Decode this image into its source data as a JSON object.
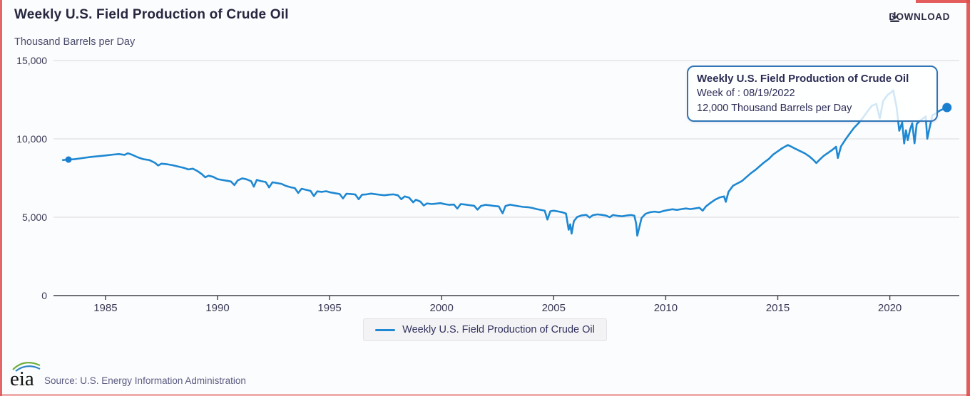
{
  "page": {
    "title": "Weekly U.S. Field Production of Crude Oil",
    "subtitle": "Thousand Barrels per Day",
    "download_label": "DOWNLOAD"
  },
  "tooltip": {
    "title": "Weekly U.S. Field Production of Crude Oil",
    "week_line": "Week of : 08/19/2022",
    "value_line": "12,000 Thousand Barrels per Day"
  },
  "legend": {
    "label": "Weekly U.S. Field Production of Crude Oil"
  },
  "footer": {
    "logo_text": "eia",
    "source": "Source: U.S. Energy Information Administration"
  },
  "colors": {
    "line": "#1e88d2",
    "dot": "#1b7fd0",
    "grid": "#d9d9de",
    "axis": "#3f3f4a",
    "tooltip_border": "#2f74b5",
    "red_border": "#e14b4b"
  },
  "chart_data": {
    "type": "line",
    "title": "Weekly U.S. Field Production of Crude Oil",
    "ylabel": "Thousand Barrels per Day",
    "xlabel": "",
    "xlim": [
      1982.68,
      2023.1
    ],
    "ylim": [
      0,
      15000
    ],
    "grid": true,
    "legend_position": "bottom",
    "x_ticks": [
      1985,
      1990,
      1995,
      2000,
      2005,
      2010,
      2015,
      2020
    ],
    "y_ticks": [
      {
        "value": 15000,
        "label": "15,000"
      },
      {
        "value": 10000,
        "label": "10,000"
      },
      {
        "value": 5000,
        "label": "5,000"
      },
      {
        "value": 0,
        "label": "0"
      }
    ],
    "highlighted_point": {
      "week_of": "08/19/2022",
      "value": 12000
    },
    "series": [
      {
        "name": "Weekly U.S. Field Production of Crude Oil",
        "color": "#1e88d2",
        "points": [
          [
            1983.1,
            8650
          ],
          [
            1983.35,
            8680
          ],
          [
            1983.6,
            8700
          ],
          [
            1983.85,
            8750
          ],
          [
            1984.1,
            8800
          ],
          [
            1984.35,
            8850
          ],
          [
            1984.6,
            8880
          ],
          [
            1984.85,
            8920
          ],
          [
            1985.1,
            8960
          ],
          [
            1985.35,
            9000
          ],
          [
            1985.6,
            9030
          ],
          [
            1985.85,
            8980
          ],
          [
            1986.0,
            9080
          ],
          [
            1986.2,
            8980
          ],
          [
            1986.45,
            8820
          ],
          [
            1986.7,
            8700
          ],
          [
            1986.95,
            8650
          ],
          [
            1987.2,
            8480
          ],
          [
            1987.35,
            8300
          ],
          [
            1987.5,
            8420
          ],
          [
            1987.75,
            8380
          ],
          [
            1988.0,
            8320
          ],
          [
            1988.25,
            8230
          ],
          [
            1988.5,
            8150
          ],
          [
            1988.7,
            8050
          ],
          [
            1988.9,
            8100
          ],
          [
            1989.1,
            7950
          ],
          [
            1989.3,
            7750
          ],
          [
            1989.45,
            7550
          ],
          [
            1989.6,
            7650
          ],
          [
            1989.8,
            7580
          ],
          [
            1990.0,
            7430
          ],
          [
            1990.2,
            7380
          ],
          [
            1990.4,
            7330
          ],
          [
            1990.6,
            7280
          ],
          [
            1990.75,
            7050
          ],
          [
            1990.9,
            7350
          ],
          [
            1991.1,
            7480
          ],
          [
            1991.3,
            7420
          ],
          [
            1991.5,
            7300
          ],
          [
            1991.62,
            6950
          ],
          [
            1991.75,
            7380
          ],
          [
            1991.95,
            7300
          ],
          [
            1992.15,
            7250
          ],
          [
            1992.3,
            6900
          ],
          [
            1992.45,
            7230
          ],
          [
            1992.65,
            7180
          ],
          [
            1992.85,
            7130
          ],
          [
            1993.05,
            7000
          ],
          [
            1993.25,
            6920
          ],
          [
            1993.45,
            6860
          ],
          [
            1993.6,
            6550
          ],
          [
            1993.75,
            6820
          ],
          [
            1993.95,
            6750
          ],
          [
            1994.15,
            6680
          ],
          [
            1994.3,
            6350
          ],
          [
            1994.45,
            6650
          ],
          [
            1994.65,
            6620
          ],
          [
            1994.85,
            6660
          ],
          [
            1995.05,
            6580
          ],
          [
            1995.25,
            6530
          ],
          [
            1995.45,
            6480
          ],
          [
            1995.6,
            6200
          ],
          [
            1995.75,
            6500
          ],
          [
            1995.95,
            6480
          ],
          [
            1996.15,
            6450
          ],
          [
            1996.3,
            6150
          ],
          [
            1996.45,
            6440
          ],
          [
            1996.65,
            6460
          ],
          [
            1996.85,
            6510
          ],
          [
            1997.05,
            6470
          ],
          [
            1997.25,
            6430
          ],
          [
            1997.45,
            6400
          ],
          [
            1997.65,
            6440
          ],
          [
            1997.85,
            6460
          ],
          [
            1998.05,
            6400
          ],
          [
            1998.2,
            6150
          ],
          [
            1998.35,
            6330
          ],
          [
            1998.55,
            6250
          ],
          [
            1998.73,
            5950
          ],
          [
            1998.85,
            6120
          ],
          [
            1999.05,
            6000
          ],
          [
            1999.2,
            5750
          ],
          [
            1999.35,
            5880
          ],
          [
            1999.55,
            5840
          ],
          [
            1999.75,
            5870
          ],
          [
            1999.95,
            5900
          ],
          [
            2000.15,
            5830
          ],
          [
            2000.35,
            5790
          ],
          [
            2000.55,
            5810
          ],
          [
            2000.7,
            5550
          ],
          [
            2000.85,
            5840
          ],
          [
            2001.05,
            5810
          ],
          [
            2001.25,
            5770
          ],
          [
            2001.45,
            5730
          ],
          [
            2001.6,
            5480
          ],
          [
            2001.75,
            5720
          ],
          [
            2001.95,
            5790
          ],
          [
            2002.15,
            5760
          ],
          [
            2002.35,
            5720
          ],
          [
            2002.55,
            5690
          ],
          [
            2002.72,
            5250
          ],
          [
            2002.85,
            5720
          ],
          [
            2003.05,
            5800
          ],
          [
            2003.25,
            5750
          ],
          [
            2003.45,
            5700
          ],
          [
            2003.65,
            5660
          ],
          [
            2003.85,
            5640
          ],
          [
            2004.05,
            5590
          ],
          [
            2004.25,
            5520
          ],
          [
            2004.45,
            5460
          ],
          [
            2004.6,
            5420
          ],
          [
            2004.72,
            4850
          ],
          [
            2004.85,
            5380
          ],
          [
            2005.0,
            5420
          ],
          [
            2005.2,
            5370
          ],
          [
            2005.4,
            5310
          ],
          [
            2005.55,
            5230
          ],
          [
            2005.67,
            4200
          ],
          [
            2005.74,
            4550
          ],
          [
            2005.8,
            3950
          ],
          [
            2005.9,
            4750
          ],
          [
            2006.05,
            5020
          ],
          [
            2006.25,
            5120
          ],
          [
            2006.45,
            5150
          ],
          [
            2006.6,
            4980
          ],
          [
            2006.75,
            5130
          ],
          [
            2006.95,
            5180
          ],
          [
            2007.15,
            5150
          ],
          [
            2007.35,
            5100
          ],
          [
            2007.5,
            5000
          ],
          [
            2007.65,
            5140
          ],
          [
            2007.85,
            5090
          ],
          [
            2008.05,
            5060
          ],
          [
            2008.25,
            5110
          ],
          [
            2008.45,
            5140
          ],
          [
            2008.6,
            5100
          ],
          [
            2008.68,
            4600
          ],
          [
            2008.73,
            3820
          ],
          [
            2008.82,
            4350
          ],
          [
            2008.92,
            4950
          ],
          [
            2009.1,
            5220
          ],
          [
            2009.3,
            5320
          ],
          [
            2009.5,
            5360
          ],
          [
            2009.7,
            5320
          ],
          [
            2009.9,
            5400
          ],
          [
            2010.1,
            5460
          ],
          [
            2010.3,
            5510
          ],
          [
            2010.5,
            5470
          ],
          [
            2010.7,
            5520
          ],
          [
            2010.9,
            5560
          ],
          [
            2011.1,
            5520
          ],
          [
            2011.3,
            5560
          ],
          [
            2011.5,
            5610
          ],
          [
            2011.65,
            5420
          ],
          [
            2011.8,
            5700
          ],
          [
            2012.0,
            5920
          ],
          [
            2012.2,
            6120
          ],
          [
            2012.4,
            6260
          ],
          [
            2012.6,
            6330
          ],
          [
            2012.68,
            5980
          ],
          [
            2012.8,
            6620
          ],
          [
            2013.0,
            7010
          ],
          [
            2013.2,
            7160
          ],
          [
            2013.4,
            7310
          ],
          [
            2013.6,
            7560
          ],
          [
            2013.8,
            7810
          ],
          [
            2014.0,
            8020
          ],
          [
            2014.2,
            8270
          ],
          [
            2014.4,
            8510
          ],
          [
            2014.6,
            8720
          ],
          [
            2014.8,
            9010
          ],
          [
            2015.0,
            9210
          ],
          [
            2015.2,
            9410
          ],
          [
            2015.45,
            9610
          ],
          [
            2015.6,
            9510
          ],
          [
            2015.8,
            9360
          ],
          [
            2016.0,
            9220
          ],
          [
            2016.2,
            9080
          ],
          [
            2016.4,
            8890
          ],
          [
            2016.6,
            8640
          ],
          [
            2016.72,
            8460
          ],
          [
            2016.9,
            8720
          ],
          [
            2017.05,
            8920
          ],
          [
            2017.25,
            9120
          ],
          [
            2017.45,
            9320
          ],
          [
            2017.6,
            9500
          ],
          [
            2017.68,
            8780
          ],
          [
            2017.82,
            9520
          ],
          [
            2018.0,
            9920
          ],
          [
            2018.2,
            10320
          ],
          [
            2018.4,
            10700
          ],
          [
            2018.6,
            11000
          ],
          [
            2018.8,
            11350
          ],
          [
            2019.0,
            11750
          ],
          [
            2019.2,
            12120
          ],
          [
            2019.4,
            12230
          ],
          [
            2019.55,
            11310
          ],
          [
            2019.7,
            12420
          ],
          [
            2019.9,
            12810
          ],
          [
            2020.05,
            12960
          ],
          [
            2020.15,
            13100
          ],
          [
            2020.3,
            12050
          ],
          [
            2020.42,
            10520
          ],
          [
            2020.55,
            11050
          ],
          [
            2020.64,
            9710
          ],
          [
            2020.72,
            10550
          ],
          [
            2020.8,
            9920
          ],
          [
            2020.9,
            10580
          ],
          [
            2021.0,
            11000
          ],
          [
            2021.1,
            9720
          ],
          [
            2021.2,
            10960
          ],
          [
            2021.35,
            11170
          ],
          [
            2021.5,
            11320
          ],
          [
            2021.6,
            11430
          ],
          [
            2021.67,
            10010
          ],
          [
            2021.76,
            10620
          ],
          [
            2021.9,
            11510
          ],
          [
            2022.05,
            11620
          ],
          [
            2022.2,
            11780
          ],
          [
            2022.35,
            11880
          ],
          [
            2022.5,
            11970
          ],
          [
            2022.55,
            12000
          ]
        ],
        "markers": [
          {
            "year": 1983.35,
            "value": 8680,
            "r": 4.5
          },
          {
            "year": 2022.55,
            "value": 12000,
            "r": 6.5
          }
        ]
      }
    ]
  }
}
